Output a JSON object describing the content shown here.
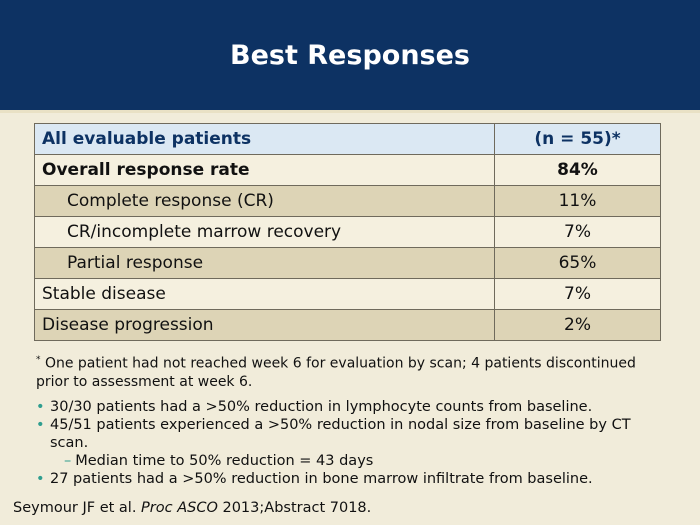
{
  "slide": {
    "title": "Best Responses"
  },
  "table": {
    "header": {
      "label": "All evaluable patients",
      "value": "(n = 55)*"
    },
    "rows": [
      {
        "label": "Overall response rate",
        "value": "84%"
      },
      {
        "label": "Complete response (CR)",
        "value": "11%"
      },
      {
        "label": "CR/incomplete marrow recovery",
        "value": "7%"
      },
      {
        "label": "Partial response",
        "value": "65%"
      },
      {
        "label": "Stable disease",
        "value": "7%"
      },
      {
        "label": "Disease progression",
        "value": "2%"
      }
    ]
  },
  "footnote": {
    "marker": "*",
    "text": "One patient had not reached week 6 for evaluation by scan; 4 patients discontinued prior to assessment at week 6."
  },
  "bullets": [
    "30/30 patients had a >50% reduction in lymphocyte counts from baseline.",
    "45/51 patients experienced a >50% reduction in nodal size from baseline by CT scan.",
    "Median time to 50% reduction = 43 days",
    "27 patients had a >50% reduction in bone marrow infiltrate from baseline."
  ],
  "citation": {
    "authors": "Seymour JF et al.",
    "journal": "Proc ASCO",
    "rest": "2013;Abstract 7018."
  },
  "colors": {
    "header_bg": "#0d3263",
    "slide_bg": "#f1ecda",
    "table_header_bg": "#dbe8f3",
    "row_shade": "#ddd4b6",
    "bullet": "#2f9e8f"
  }
}
